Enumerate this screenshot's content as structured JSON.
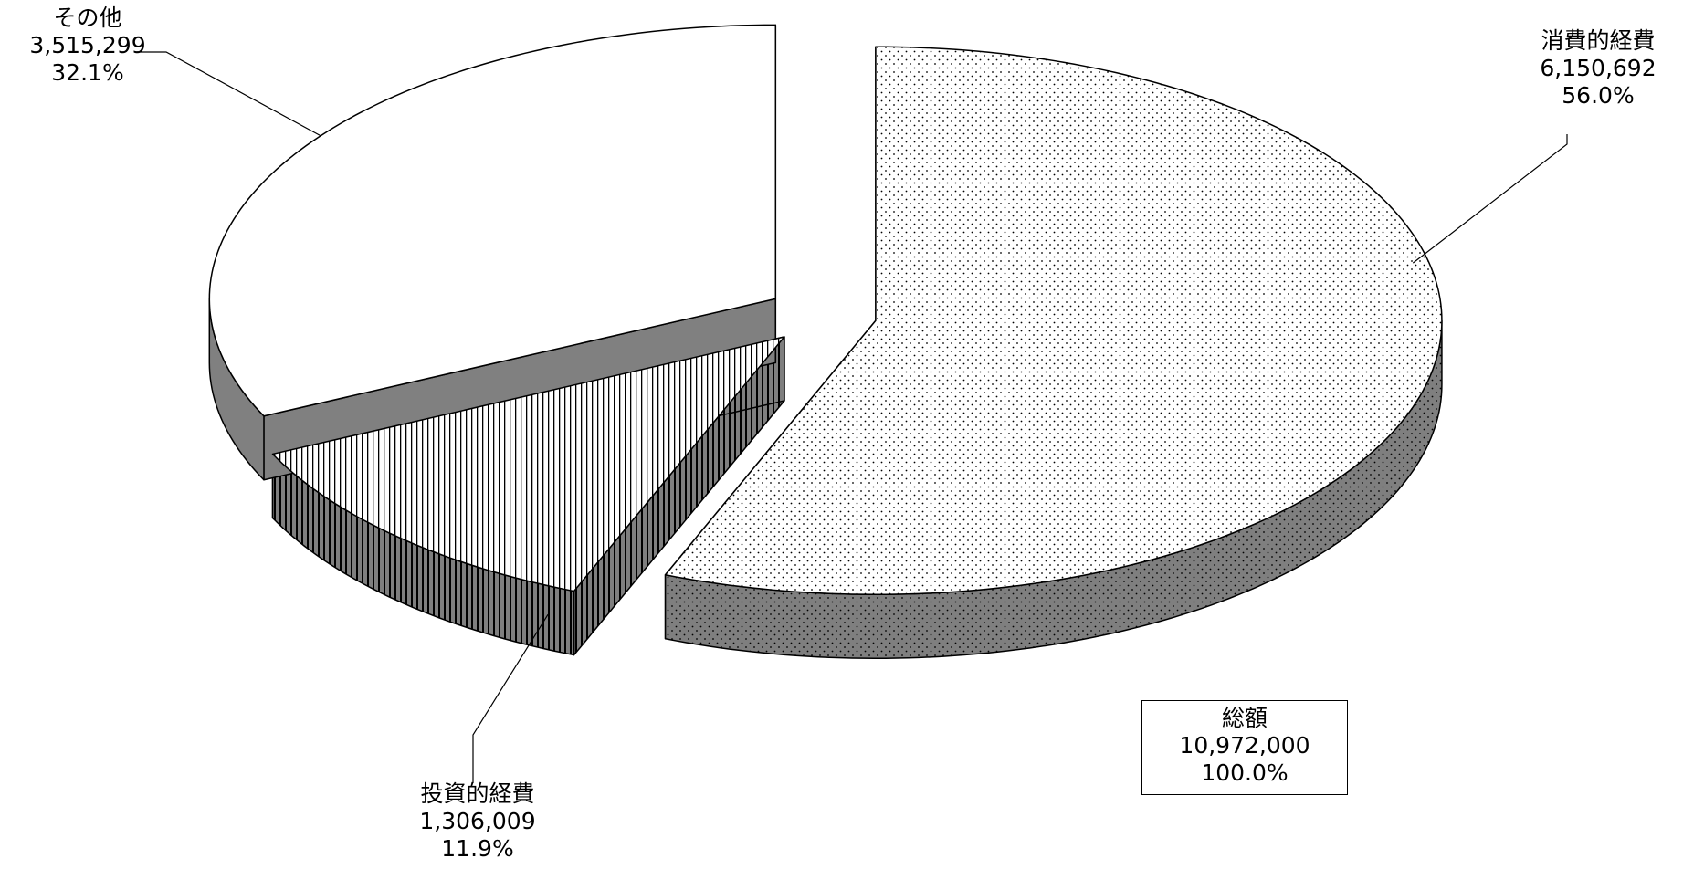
{
  "chart_data": {
    "type": "pie",
    "style": "3d-exploded",
    "slices": [
      {
        "key": "consumption",
        "name": "消費的経費",
        "value": 6150692,
        "value_label": "6,150,692",
        "percent": 56.0,
        "percent_label": "56.0%",
        "pattern": "dots"
      },
      {
        "key": "investment",
        "name": "投資的経費",
        "value": 1306009,
        "value_label": "1,306,009",
        "percent": 11.9,
        "percent_label": "11.9%",
        "pattern": "vertical-stripes"
      },
      {
        "key": "other",
        "name": "その他",
        "value": 3515299,
        "value_label": "3,515,299",
        "percent": 32.1,
        "percent_label": "32.1%",
        "pattern": "blank"
      }
    ],
    "total": {
      "name": "総額",
      "value": 10972000,
      "value_label": "10,972,000",
      "percent": 100.0,
      "percent_label": "100.0%"
    },
    "colors": {
      "outline": "#000000",
      "side": "#808080",
      "background": "#ffffff"
    }
  }
}
